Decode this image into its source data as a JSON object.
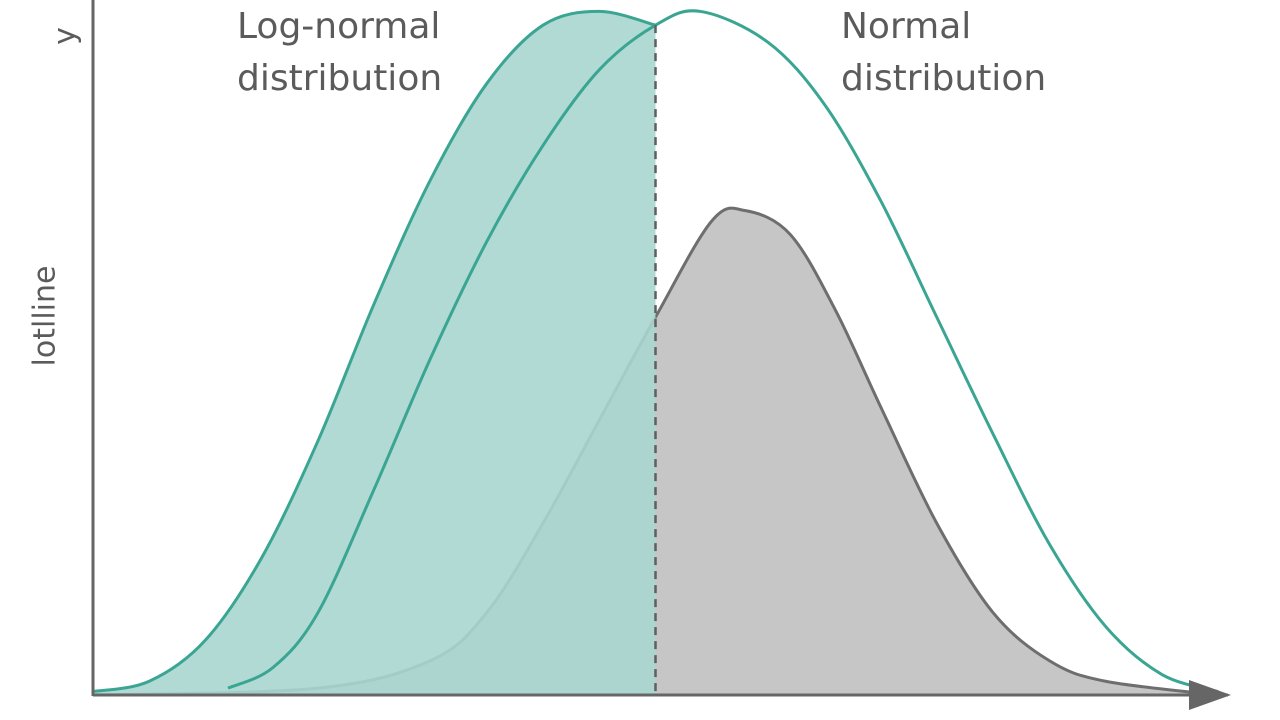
{
  "chart_data": {
    "type": "area",
    "title": "",
    "xlabel": "",
    "ylabel": "y",
    "y_side_label": "lotlline",
    "xlim": [
      0,
      100
    ],
    "ylim": [
      0,
      100
    ],
    "grid": false,
    "legend": "none",
    "colors": {
      "teal": "#3aa592",
      "teal_fill": "#a9d6cf",
      "gray": "#6e6e6e",
      "gray_fill": "#c6c6c6",
      "axis": "#666666",
      "text": "#5b5b5b"
    },
    "threshold": {
      "x": 50.0
    },
    "annotations": [
      {
        "text_lines": [
          "Log-normal",
          "distribution"
        ],
        "x": 12.5,
        "y": 98.0
      },
      {
        "text_lines": [
          "Normal",
          "distribution"
        ],
        "x": 66.5,
        "y": 98.0
      }
    ],
    "series": [
      {
        "kind": "lognormal",
        "fill_to": "threshold",
        "values": [
          [
            0,
            0.5
          ],
          [
            5,
            2
          ],
          [
            10,
            8
          ],
          [
            15,
            20
          ],
          [
            20,
            37
          ],
          [
            25,
            57
          ],
          [
            30,
            75
          ],
          [
            35,
            89
          ],
          [
            40,
            97.5
          ],
          [
            45,
            99.5
          ],
          [
            50,
            97.5
          ]
        ]
      },
      {
        "kind": "normal",
        "values": [
          [
            12,
            1
          ],
          [
            16,
            4
          ],
          [
            20,
            12
          ],
          [
            25,
            30
          ],
          [
            30,
            49
          ],
          [
            35,
            66
          ],
          [
            40,
            80
          ],
          [
            45,
            91
          ],
          [
            50,
            97.5
          ],
          [
            54,
            99.5
          ],
          [
            60,
            95
          ],
          [
            65,
            86
          ],
          [
            70,
            72
          ],
          [
            75,
            55
          ],
          [
            80,
            38
          ],
          [
            85,
            22
          ],
          [
            90,
            10
          ],
          [
            95,
            3
          ],
          [
            100,
            0.5
          ]
        ]
      },
      {
        "kind": "gray",
        "fill": true,
        "values": [
          [
            0,
            0
          ],
          [
            20,
            1
          ],
          [
            30,
            5
          ],
          [
            35,
            12
          ],
          [
            40,
            25
          ],
          [
            45,
            40
          ],
          [
            50,
            55
          ],
          [
            55,
            69
          ],
          [
            58,
            70.5
          ],
          [
            62,
            67
          ],
          [
            66,
            56
          ],
          [
            70,
            42
          ],
          [
            75,
            25
          ],
          [
            80,
            12
          ],
          [
            85,
            5
          ],
          [
            90,
            2
          ],
          [
            100,
            0
          ]
        ]
      }
    ]
  }
}
